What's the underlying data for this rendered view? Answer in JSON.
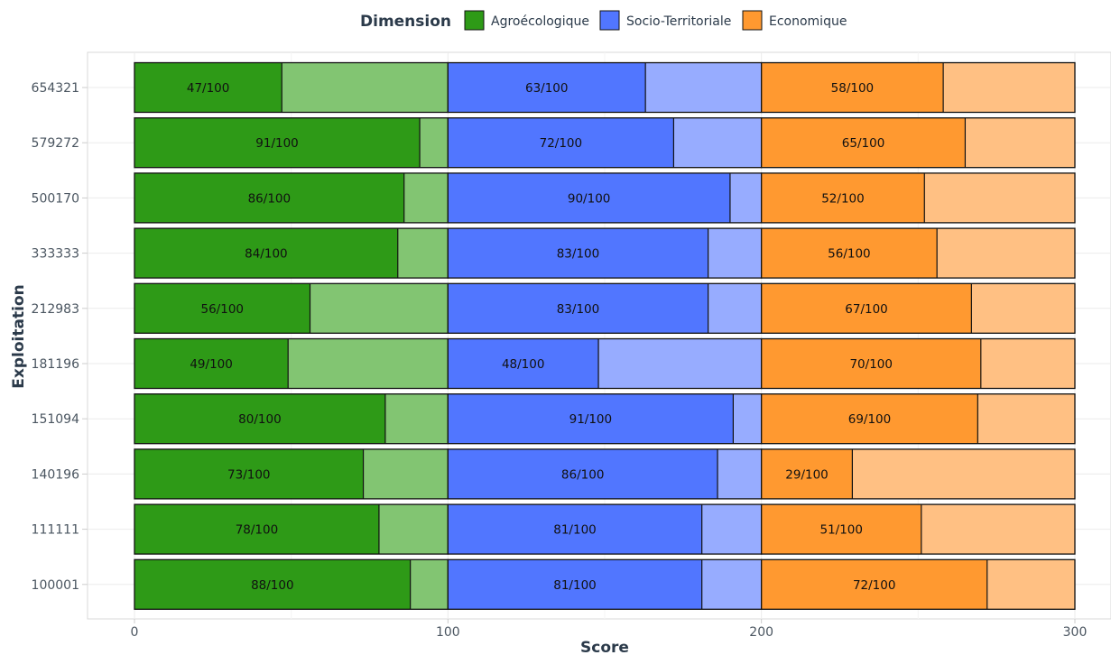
{
  "chart_data": {
    "type": "bar",
    "orientation": "horizontal",
    "stacked": true,
    "xlabel": "Score",
    "ylabel": "Exploitation",
    "xlim": [
      0,
      300
    ],
    "xticks": [
      0,
      100,
      200,
      300
    ],
    "grid": true,
    "legend": {
      "title": "Dimension",
      "placement": "top"
    },
    "label_suffix": "/100",
    "max_per_dimension": 100,
    "categories": [
      "654321",
      "579272",
      "500170",
      "333333",
      "212983",
      "181196",
      "151094",
      "140196",
      "111111",
      "100001"
    ],
    "series": [
      {
        "name": "Agroécologique",
        "color": "#2e9a17",
        "light_color": "#82c572",
        "values": [
          47,
          91,
          86,
          84,
          56,
          49,
          80,
          73,
          78,
          88
        ]
      },
      {
        "name": "Socio-Territoriale",
        "color": "#5176ff",
        "light_color": "#97acff",
        "values": [
          63,
          72,
          90,
          83,
          83,
          48,
          91,
          86,
          81,
          81
        ]
      },
      {
        "name": "Economique",
        "color": "#ff9930",
        "light_color": "#ffc083",
        "values": [
          58,
          65,
          52,
          56,
          67,
          70,
          69,
          29,
          51,
          72
        ]
      }
    ]
  }
}
